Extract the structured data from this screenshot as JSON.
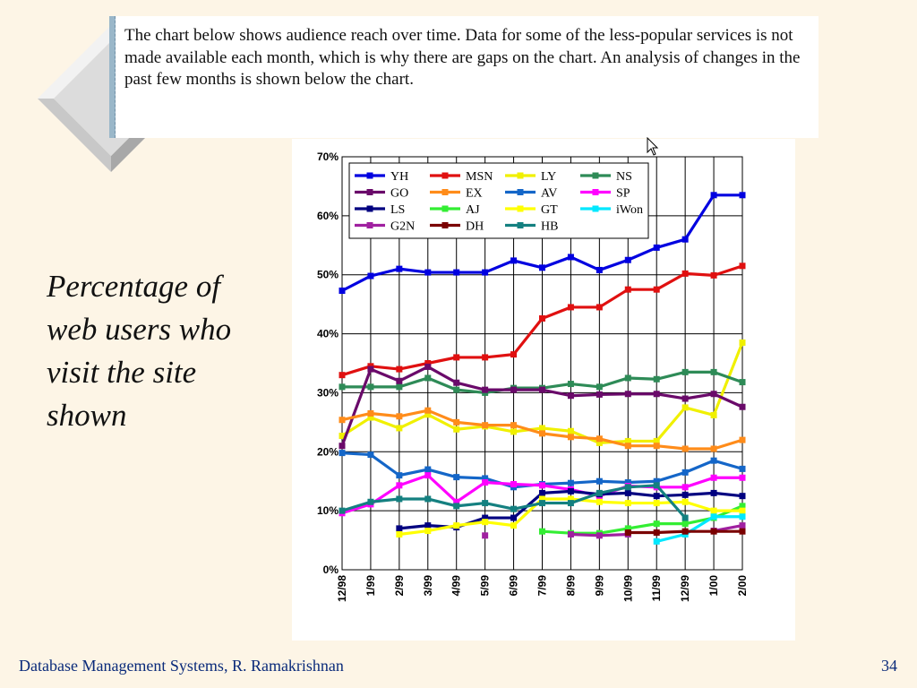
{
  "slide": {
    "description": "The chart below shows audience reach over time. Data for some of the less-popular services is not made available each month, which is why there are gaps on the chart. An analysis of changes in the past few months is shown below the chart.",
    "side_caption": "Percentage of web users who visit the site shown",
    "footer_left": "Database Management Systems, R. Ramakrishnan",
    "page_number": "34"
  },
  "chart_data": {
    "type": "line",
    "title": "",
    "xlabel": "",
    "ylabel": "",
    "ylim": [
      0,
      70
    ],
    "y_ticks": [
      "0%",
      "10%",
      "20%",
      "30%",
      "40%",
      "50%",
      "60%",
      "70%"
    ],
    "grid": "on",
    "legend_position": "top-left",
    "categories": [
      "12/98",
      "1/99",
      "2/99",
      "3/99",
      "4/99",
      "5/99",
      "6/99",
      "7/99",
      "8/99",
      "9/99",
      "10/99",
      "11/99",
      "12/99",
      "1/00",
      "2/00"
    ],
    "series": [
      {
        "name": "YH",
        "color": "#0000e0",
        "values": [
          47.3,
          49.8,
          51,
          50.4,
          50.4,
          50.4,
          52.4,
          51.2,
          53,
          50.8,
          52.5,
          54.6,
          56,
          63.5,
          63.5
        ]
      },
      {
        "name": "MSN",
        "color": "#e01010",
        "values": [
          33,
          34.5,
          34,
          35,
          36,
          36,
          36.5,
          42.6,
          44.5,
          44.5,
          47.5,
          47.5,
          50.2,
          49.9,
          51.5
        ]
      },
      {
        "name": "LY",
        "color": "#f0f000",
        "values": [
          22.7,
          25.8,
          24,
          26.3,
          23.8,
          24.3,
          23.4,
          24,
          23.5,
          21.5,
          21.8,
          21.8,
          27.5,
          26.2,
          38.5
        ]
      },
      {
        "name": "NS",
        "color": "#2e8b57",
        "values": [
          31,
          31,
          31,
          32.5,
          30.5,
          30,
          30.8,
          30.8,
          31.5,
          31,
          32.5,
          32.3,
          33.5,
          33.5,
          31.8
        ]
      },
      {
        "name": "GO",
        "color": "#6a0a6a",
        "values": [
          21,
          34,
          32,
          34.4,
          31.7,
          30.5,
          30.5,
          30.5,
          29.5,
          29.7,
          29.8,
          29.8,
          29,
          29.8,
          27.6
        ]
      },
      {
        "name": "EX",
        "color": "#ff8c1a",
        "values": [
          25.4,
          26.5,
          26,
          27,
          25,
          24.5,
          24.5,
          23.1,
          22.5,
          22.2,
          21,
          21,
          20.5,
          20.5,
          22
        ]
      },
      {
        "name": "AV",
        "color": "#1466c8",
        "values": [
          19.8,
          19.5,
          16,
          17,
          15.7,
          15.5,
          14,
          14.5,
          14.7,
          15,
          14.8,
          15,
          16.5,
          18.5,
          17.1
        ]
      },
      {
        "name": "SP",
        "color": "#ff00ff",
        "values": [
          9.6,
          11.1,
          14.3,
          16,
          11.5,
          14.8,
          14.5,
          14.3,
          13.6,
          12.5,
          14.2,
          14,
          14,
          15.6,
          15.6
        ]
      },
      {
        "name": "LS",
        "color": "#000080",
        "values": [
          null,
          null,
          7,
          7.5,
          7.2,
          8.8,
          8.8,
          13,
          13.3,
          12.8,
          13,
          12.5,
          12.7,
          13,
          12.5
        ]
      },
      {
        "name": "AJ",
        "color": "#33ee33",
        "values": [
          null,
          null,
          null,
          null,
          null,
          null,
          null,
          6.5,
          6.2,
          6.2,
          7,
          7.8,
          7.8,
          8.8,
          10.8
        ]
      },
      {
        "name": "GT",
        "color": "#ffff00",
        "values": [
          null,
          null,
          6,
          6.6,
          7.5,
          8.1,
          7.5,
          12,
          12,
          11.5,
          11.3,
          11.3,
          11.5,
          10,
          10
        ]
      },
      {
        "name": "iWon",
        "color": "#00e8ff",
        "values": [
          null,
          null,
          null,
          null,
          null,
          null,
          null,
          null,
          null,
          null,
          null,
          4.8,
          6,
          9,
          9
        ]
      },
      {
        "name": "G2N",
        "color": "#a020a0",
        "values": [
          null,
          null,
          null,
          null,
          null,
          5.8,
          null,
          null,
          6,
          5.8,
          6,
          null,
          null,
          6.6,
          7.5
        ]
      },
      {
        "name": "DH",
        "color": "#7a0000",
        "values": [
          null,
          null,
          null,
          null,
          null,
          null,
          null,
          null,
          null,
          null,
          6.3,
          6.3,
          6.5,
          6.5,
          6.5
        ]
      },
      {
        "name": "HB",
        "color": "#148080",
        "values": [
          10,
          11.5,
          12,
          12,
          10.8,
          11.3,
          10.3,
          11.3,
          11.3,
          13,
          14,
          14.3,
          8.8,
          null,
          null
        ]
      }
    ]
  }
}
